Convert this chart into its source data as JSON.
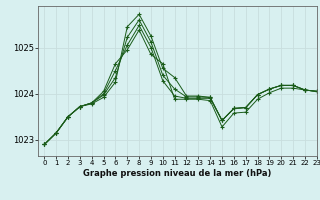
{
  "background_color": "#d8f0f0",
  "grid_color": "#c8dede",
  "line_color": "#1a5c1a",
  "title": "Graphe pression niveau de la mer (hPa)",
  "xlim": [
    -0.5,
    23
  ],
  "ylim": [
    1022.65,
    1025.9
  ],
  "yticks": [
    1023,
    1024,
    1025
  ],
  "xticks": [
    0,
    1,
    2,
    3,
    4,
    5,
    6,
    7,
    8,
    9,
    10,
    11,
    12,
    13,
    14,
    15,
    16,
    17,
    18,
    19,
    20,
    21,
    22,
    23
  ],
  "series": [
    [
      1022.9,
      1023.15,
      1023.5,
      1023.72,
      1023.78,
      1023.92,
      1024.25,
      1025.45,
      1025.72,
      1025.25,
      1024.55,
      1024.35,
      1023.95,
      1023.95,
      1023.92,
      1023.42,
      1023.68,
      1023.7,
      1023.98,
      1024.1,
      1024.18,
      1024.18,
      1024.08,
      1024.05
    ],
    [
      1022.9,
      1023.15,
      1023.5,
      1023.72,
      1023.8,
      1023.97,
      1024.35,
      1025.22,
      1025.6,
      1025.12,
      1024.4,
      1024.1,
      1023.93,
      1023.93,
      1023.92,
      1023.42,
      1023.68,
      1023.7,
      1023.98,
      1024.1,
      1024.18,
      1024.18,
      1024.08,
      1024.05
    ],
    [
      1022.9,
      1023.15,
      1023.5,
      1023.72,
      1023.8,
      1024.0,
      1024.5,
      1025.05,
      1025.48,
      1025.0,
      1024.28,
      1023.95,
      1023.9,
      1023.9,
      1023.9,
      1023.42,
      1023.68,
      1023.7,
      1023.98,
      1024.1,
      1024.18,
      1024.18,
      1024.08,
      1024.05
    ],
    [
      1022.9,
      1023.15,
      1023.5,
      1023.72,
      1023.8,
      1024.05,
      1024.65,
      1024.95,
      1025.38,
      1024.85,
      1024.65,
      1023.88,
      1023.88,
      1023.88,
      1023.85,
      1023.28,
      1023.58,
      1023.6,
      1023.88,
      1024.02,
      1024.12,
      1024.12,
      1024.08,
      1024.05
    ]
  ]
}
